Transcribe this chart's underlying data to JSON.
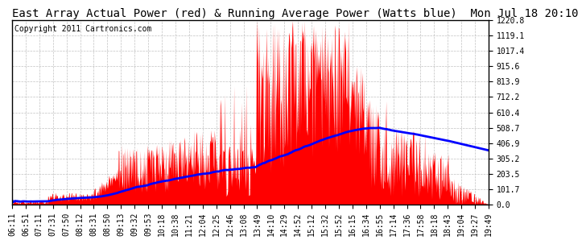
{
  "title": "East Array Actual Power (red) & Running Average Power (Watts blue)  Mon Jul 18 20:10",
  "copyright": "Copyright 2011 Cartronics.com",
  "y_ticks": [
    0.0,
    101.7,
    203.5,
    305.2,
    406.9,
    508.7,
    610.4,
    712.2,
    813.9,
    915.6,
    1017.4,
    1119.1,
    1220.8
  ],
  "x_labels": [
    "06:11",
    "06:51",
    "07:11",
    "07:31",
    "07:50",
    "08:12",
    "08:31",
    "08:50",
    "09:13",
    "09:32",
    "09:53",
    "10:18",
    "10:38",
    "11:21",
    "12:04",
    "12:25",
    "12:46",
    "13:08",
    "13:49",
    "14:10",
    "14:29",
    "14:52",
    "15:12",
    "15:32",
    "15:52",
    "16:15",
    "16:34",
    "16:55",
    "17:14",
    "17:36",
    "17:58",
    "18:18",
    "18:43",
    "19:04",
    "19:27",
    "19:49"
  ],
  "ylim": [
    0.0,
    1220.8
  ],
  "bg_color": "#ffffff",
  "plot_bg_color": "#ffffff",
  "grid_color": "#bbbbbb",
  "bar_color": "#ff0000",
  "line_color": "#0000ff",
  "title_fontsize": 10,
  "tick_fontsize": 7,
  "copyright_fontsize": 7
}
